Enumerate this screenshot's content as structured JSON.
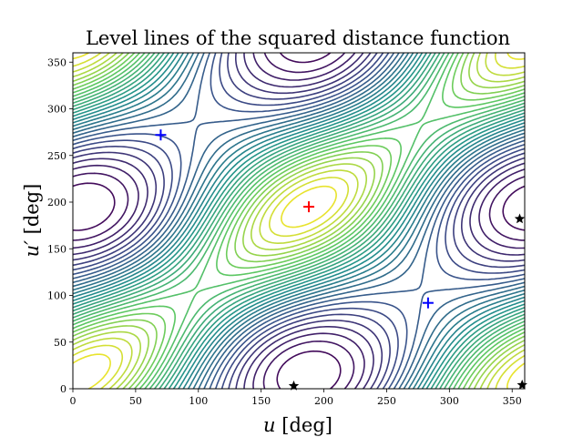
{
  "chart_data": {
    "type": "contour",
    "title": "Level lines of the squared distance function",
    "xlabel_var": "u",
    "xlabel_unit": " [deg]",
    "ylabel_var": "u′",
    "ylabel_unit": " [deg]",
    "xlim": [
      0,
      360
    ],
    "ylim": [
      0,
      360
    ],
    "xticks": [
      0,
      50,
      100,
      150,
      200,
      250,
      300,
      350
    ],
    "yticks": [
      0,
      50,
      100,
      150,
      200,
      250,
      300,
      350
    ],
    "grid": false,
    "colormap": [
      "#440154",
      "#3b528b",
      "#21918c",
      "#5ec962",
      "#fde725"
    ],
    "contour_levels": 30,
    "maximum": {
      "u": 188,
      "u_prime": 195,
      "marker": "+",
      "color": "#ff0000"
    },
    "minima": [
      {
        "u": 70,
        "u_prime": 272,
        "marker": "+",
        "color": "#0000ff"
      },
      {
        "u": 283,
        "u_prime": 92,
        "marker": "+",
        "color": "#0000ff"
      }
    ],
    "saddles": [
      {
        "u": 176,
        "u_prime": 3,
        "marker": "star",
        "color": "#000000"
      },
      {
        "u": 356,
        "u_prime": 182,
        "marker": "star",
        "color": "#000000"
      },
      {
        "u": 358,
        "u_prime": 4,
        "marker": "star",
        "color": "#000000"
      }
    ]
  }
}
